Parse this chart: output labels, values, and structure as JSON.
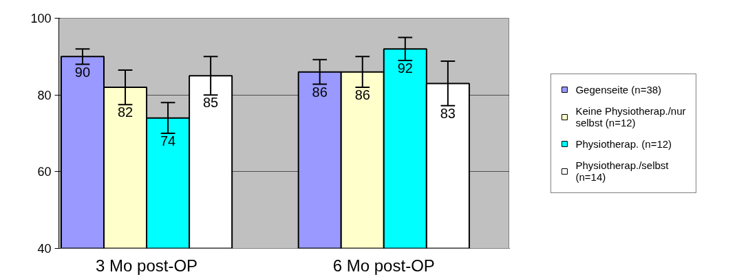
{
  "chart_data": {
    "type": "bar",
    "categories": [
      "3 Mo post-OP",
      "6 Mo post-OP"
    ],
    "series": [
      {
        "name": "Gegenseite (n=38)",
        "color": "#9999ff",
        "values": [
          90,
          86
        ],
        "errors": [
          2,
          3.2
        ]
      },
      {
        "name": "Keine Physiotherap./nur selbst (n=12)",
        "color": "#ffffcc",
        "values": [
          82,
          86
        ],
        "errors": [
          4.5,
          4
        ]
      },
      {
        "name": "Physiotherap. (n=12)",
        "color": "#00ffff",
        "values": [
          74,
          92
        ],
        "errors": [
          4,
          3
        ]
      },
      {
        "name": "Physiotherap./selbst (n=14)",
        "color": "#ffffff",
        "values": [
          85,
          83
        ],
        "errors": [
          5,
          5.8
        ]
      }
    ],
    "ylim": [
      40,
      100
    ],
    "yticks": [
      40,
      60,
      80,
      100
    ],
    "grid": "y",
    "legend": "right",
    "data_labels": true
  }
}
